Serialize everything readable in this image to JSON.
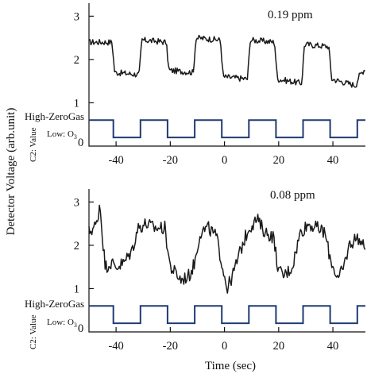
{
  "chart_data": [
    {
      "type": "line",
      "concentration_label": "0.19 ppm",
      "xlim": [
        -50,
        52
      ],
      "ylim": [
        0,
        3.3
      ],
      "x_ticks": [
        -40,
        -20,
        0,
        20,
        40
      ],
      "x_tick_labels": [
        "-40",
        "-20",
        "0",
        "20",
        "40"
      ],
      "y_ticks": [
        1,
        2,
        3
      ],
      "y_tick_labels": [
        "1",
        "2",
        "3"
      ],
      "valve_high_label": "High-ZeroGas",
      "valve_axis_label": "C2: Value",
      "valve_low_label": "Low: O",
      "valve_low_sub": "3",
      "valve_zero_label": "0",
      "valve_levels": {
        "high": 0.6,
        "low": 0.2
      },
      "valve_switch_times": [
        -41,
        -31,
        -21,
        -11,
        -1,
        9,
        19,
        29,
        39,
        49
      ],
      "series": [
        {
          "role": "detector_voltage",
          "points": [
            [
              -50,
              2.4
            ],
            [
              -41.5,
              2.4
            ],
            [
              -40.5,
              1.7
            ],
            [
              -31.5,
              1.65
            ],
            [
              -30.5,
              2.45
            ],
            [
              -21.5,
              2.4
            ],
            [
              -20.5,
              1.75
            ],
            [
              -11.5,
              1.7
            ],
            [
              -10.5,
              2.5
            ],
            [
              -1.5,
              2.45
            ],
            [
              -0.5,
              1.6
            ],
            [
              8.5,
              1.55
            ],
            [
              9.5,
              2.45
            ],
            [
              18.5,
              2.4
            ],
            [
              19.5,
              1.55
            ],
            [
              28.5,
              1.45
            ],
            [
              29.5,
              2.35
            ],
            [
              38.5,
              2.3
            ],
            [
              39.5,
              1.55
            ],
            [
              48.5,
              1.4
            ],
            [
              49.5,
              1.6
            ],
            [
              52,
              1.8
            ]
          ],
          "noise_amplitude": 0.07
        },
        {
          "role": "valve",
          "points": [
            [
              -50,
              0.6
            ],
            [
              -41,
              0.6
            ],
            [
              -41,
              0.2
            ],
            [
              -31,
              0.2
            ],
            [
              -31,
              0.6
            ],
            [
              -21,
              0.6
            ],
            [
              -21,
              0.2
            ],
            [
              -11,
              0.2
            ],
            [
              -11,
              0.6
            ],
            [
              -1,
              0.6
            ],
            [
              -1,
              0.2
            ],
            [
              9,
              0.2
            ],
            [
              9,
              0.6
            ],
            [
              19,
              0.6
            ],
            [
              19,
              0.2
            ],
            [
              29,
              0.2
            ],
            [
              29,
              0.6
            ],
            [
              39,
              0.6
            ],
            [
              39,
              0.2
            ],
            [
              49,
              0.2
            ],
            [
              49,
              0.6
            ],
            [
              52,
              0.6
            ]
          ]
        }
      ]
    },
    {
      "type": "line",
      "concentration_label": "0.08 ppm",
      "xlim": [
        -50,
        52
      ],
      "ylim": [
        0,
        3.3
      ],
      "x_ticks": [
        -40,
        -20,
        0,
        20,
        40
      ],
      "x_tick_labels": [
        "-40",
        "-20",
        "0",
        "20",
        "40"
      ],
      "y_ticks": [
        1,
        2,
        3
      ],
      "y_tick_labels": [
        "1",
        "2",
        "3"
      ],
      "xlabel": "Time (sec)",
      "valve_high_label": "High-ZeroGas",
      "valve_axis_label": "C2: Value",
      "valve_low_label": "Low: O",
      "valve_low_sub": "3",
      "valve_zero_label": "0",
      "valve_levels": {
        "high": 0.6,
        "low": 0.2
      },
      "valve_switch_times": [
        -41,
        -31,
        -21,
        -11,
        -1,
        9,
        19,
        29,
        39,
        49
      ],
      "series": [
        {
          "role": "detector_voltage",
          "points": [
            [
              -50,
              2.3
            ],
            [
              -47,
              2.5
            ],
            [
              -46,
              3.0
            ],
            [
              -45,
              2.2
            ],
            [
              -44,
              1.5
            ],
            [
              -42,
              1.6
            ],
            [
              -40,
              1.5
            ],
            [
              -37,
              1.6
            ],
            [
              -34,
              1.9
            ],
            [
              -32,
              2.4
            ],
            [
              -29,
              2.5
            ],
            [
              -26,
              2.4
            ],
            [
              -22,
              2.4
            ],
            [
              -20,
              1.5
            ],
            [
              -16,
              1.2
            ],
            [
              -13,
              1.3
            ],
            [
              -11,
              1.6
            ],
            [
              -9,
              2.3
            ],
            [
              -6,
              2.4
            ],
            [
              -3,
              2.2
            ],
            [
              -1,
              1.6
            ],
            [
              1,
              1.0
            ],
            [
              3,
              1.3
            ],
            [
              6,
              1.9
            ],
            [
              9,
              2.4
            ],
            [
              12,
              2.6
            ],
            [
              15,
              2.3
            ],
            [
              18,
              2.2
            ],
            [
              20,
              1.4
            ],
            [
              22,
              1.3
            ],
            [
              25,
              1.5
            ],
            [
              28,
              2.3
            ],
            [
              31,
              2.5
            ],
            [
              34,
              2.4
            ],
            [
              37,
              2.3
            ],
            [
              39,
              1.7
            ],
            [
              42,
              1.2
            ],
            [
              44,
              1.5
            ],
            [
              46,
              2.0
            ],
            [
              49,
              2.2
            ],
            [
              52,
              1.9
            ]
          ],
          "noise_amplitude": 0.16
        },
        {
          "role": "valve",
          "points": [
            [
              -50,
              0.6
            ],
            [
              -41,
              0.6
            ],
            [
              -41,
              0.2
            ],
            [
              -31,
              0.2
            ],
            [
              -31,
              0.6
            ],
            [
              -21,
              0.6
            ],
            [
              -21,
              0.2
            ],
            [
              -11,
              0.2
            ],
            [
              -11,
              0.6
            ],
            [
              -1,
              0.6
            ],
            [
              -1,
              0.2
            ],
            [
              9,
              0.2
            ],
            [
              9,
              0.6
            ],
            [
              19,
              0.6
            ],
            [
              19,
              0.2
            ],
            [
              29,
              0.2
            ],
            [
              29,
              0.6
            ],
            [
              39,
              0.6
            ],
            [
              39,
              0.2
            ],
            [
              49,
              0.2
            ],
            [
              49,
              0.6
            ],
            [
              52,
              0.6
            ]
          ]
        }
      ]
    }
  ],
  "figure": {
    "ylabel": "Detector Voltage (arb.unit)",
    "xlabel": "Time (sec)"
  }
}
